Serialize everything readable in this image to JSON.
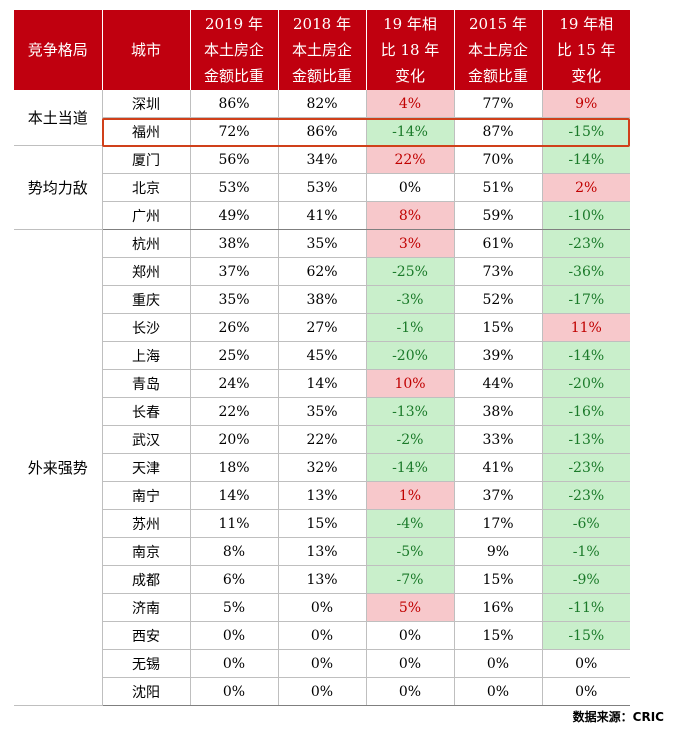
{
  "headers": [
    "竞争格局",
    "城市",
    "2019 年\n本土房企\n金额比重",
    "2018 年\n本土房企\n金额比重",
    "19 年相\n比 18 年\n变化",
    "2015 年\n本土房企\n金额比重",
    "19 年相\n比 15 年\n变化"
  ],
  "groups": [
    {
      "name": "本土当道",
      "rows": [
        {
          "city": "深圳",
          "y2019": "86%",
          "y2018": "82%",
          "chg18": "4%",
          "y2015": "77%",
          "chg15": "9%"
        },
        {
          "city": "福州",
          "y2019": "72%",
          "y2018": "86%",
          "chg18": "-14%",
          "y2015": "87%",
          "chg15": "-15%"
        }
      ]
    },
    {
      "name": "势均力敌",
      "rows": [
        {
          "city": "厦门",
          "y2019": "56%",
          "y2018": "34%",
          "chg18": "22%",
          "y2015": "70%",
          "chg15": "-14%"
        },
        {
          "city": "北京",
          "y2019": "53%",
          "y2018": "53%",
          "chg18": "0%",
          "y2015": "51%",
          "chg15": "2%"
        },
        {
          "city": "广州",
          "y2019": "49%",
          "y2018": "41%",
          "chg18": "8%",
          "y2015": "59%",
          "chg15": "-10%"
        }
      ]
    },
    {
      "name": "外来强势",
      "rows": [
        {
          "city": "杭州",
          "y2019": "38%",
          "y2018": "35%",
          "chg18": "3%",
          "y2015": "61%",
          "chg15": "-23%"
        },
        {
          "city": "郑州",
          "y2019": "37%",
          "y2018": "62%",
          "chg18": "-25%",
          "y2015": "73%",
          "chg15": "-36%"
        },
        {
          "city": "重庆",
          "y2019": "35%",
          "y2018": "38%",
          "chg18": "-3%",
          "y2015": "52%",
          "chg15": "-17%"
        },
        {
          "city": "长沙",
          "y2019": "26%",
          "y2018": "27%",
          "chg18": "-1%",
          "y2015": "15%",
          "chg15": "11%"
        },
        {
          "city": "上海",
          "y2019": "25%",
          "y2018": "45%",
          "chg18": "-20%",
          "y2015": "39%",
          "chg15": "-14%"
        },
        {
          "city": "青岛",
          "y2019": "24%",
          "y2018": "14%",
          "chg18": "10%",
          "y2015": "44%",
          "chg15": "-20%"
        },
        {
          "city": "长春",
          "y2019": "22%",
          "y2018": "35%",
          "chg18": "-13%",
          "y2015": "38%",
          "chg15": "-16%"
        },
        {
          "city": "武汉",
          "y2019": "20%",
          "y2018": "22%",
          "chg18": "-2%",
          "y2015": "33%",
          "chg15": "-13%"
        },
        {
          "city": "天津",
          "y2019": "18%",
          "y2018": "32%",
          "chg18": "-14%",
          "y2015": "41%",
          "chg15": "-23%"
        },
        {
          "city": "南宁",
          "y2019": "14%",
          "y2018": "13%",
          "chg18": "1%",
          "y2015": "37%",
          "chg15": "-23%"
        },
        {
          "city": "苏州",
          "y2019": "11%",
          "y2018": "15%",
          "chg18": "-4%",
          "y2015": "17%",
          "chg15": "-6%"
        },
        {
          "city": "南京",
          "y2019": "8%",
          "y2018": "13%",
          "chg18": "-5%",
          "y2015": "9%",
          "chg15": "-1%"
        },
        {
          "city": "成都",
          "y2019": "6%",
          "y2018": "13%",
          "chg18": "-7%",
          "y2015": "15%",
          "chg15": "-9%"
        },
        {
          "city": "济南",
          "y2019": "5%",
          "y2018": "0%",
          "chg18": "5%",
          "y2015": "16%",
          "chg15": "-11%"
        },
        {
          "city": "西安",
          "y2019": "0%",
          "y2018": "0%",
          "chg18": "0%",
          "y2015": "15%",
          "chg15": "-15%"
        },
        {
          "city": "无锡",
          "y2019": "0%",
          "y2018": "0%",
          "chg18": "0%",
          "y2015": "0%",
          "chg15": "0%"
        },
        {
          "city": "沈阳",
          "y2019": "0%",
          "y2018": "0%",
          "chg18": "0%",
          "y2015": "0%",
          "chg15": "0%"
        }
      ]
    }
  ],
  "highlighted_city": "福州",
  "source": "数据来源：CRIC",
  "colors": {
    "header_bg": "#c0000f",
    "positive_bg": "#f7c8cb",
    "positive_text": "#c00000",
    "negative_bg": "#c9efcb",
    "negative_text": "#1b7a2a",
    "highlight_border": "#d0401a"
  }
}
